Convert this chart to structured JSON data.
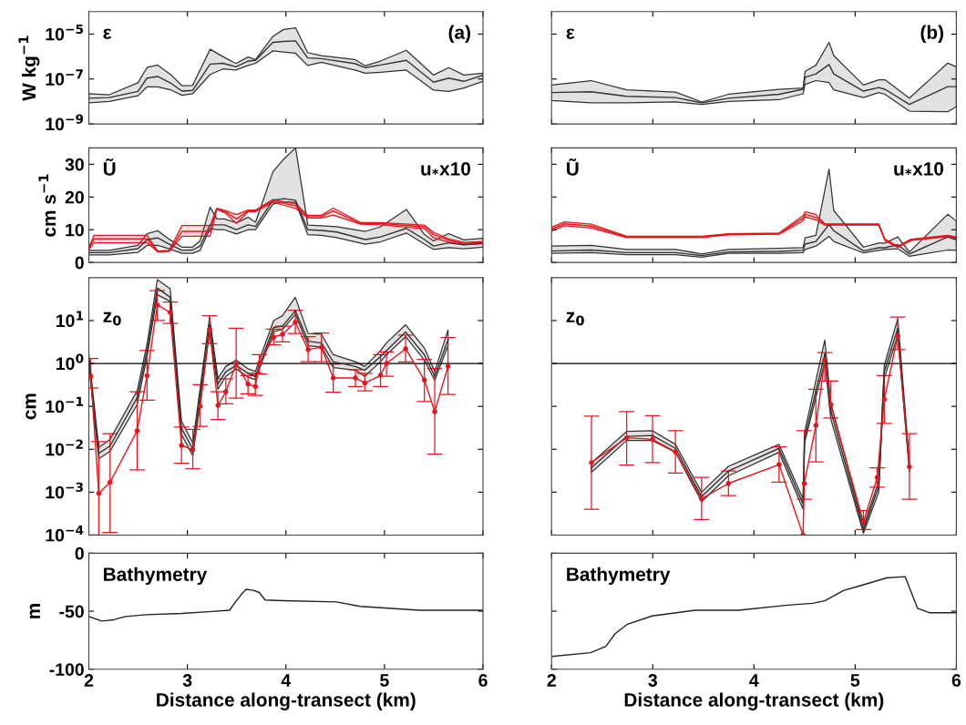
{
  "chart_data": [
    {
      "type": "line",
      "ylabel": "W kg$^{−1}$",
      "annotations": [
        "ε",
        "(a)"
      ],
      "log": true,
      "xlim": [
        2,
        6
      ],
      "xticks": [
        2,
        3,
        4,
        5,
        6
      ],
      "ylim": [
        1e-09,
        0.0001
      ],
      "yticks": [
        {
          "value": 1e-09,
          "label": "10$^{−9}$"
        },
        {
          "value": 1e-07,
          "label": "10$^{−7}$"
        },
        {
          "value": 1e-05,
          "label": "10$^{−5}$"
        }
      ],
      "tick_labels": "y",
      "marker": "none",
      "series": [
        {
          "color": "#333333",
          "x": [
            2,
            2.206,
            2.498,
            2.591,
            2.698,
            2.837,
            2.945,
            3.052,
            3.231,
            3.36,
            3.492,
            3.615,
            3.692,
            3.868,
            3.975,
            4.098,
            4.22,
            4.36,
            4.698,
            4.806,
            4.96,
            5.222,
            5.498,
            5.652,
            5.806,
            6.0
          ],
          "values": [
            1.4e-08,
            1.5e-08,
            2.8e-08,
            1.1e-07,
            1.3e-07,
            6.3e-08,
            2.9e-08,
            3.1e-08,
            4.6e-07,
            5e-07,
            3.5e-07,
            6.3e-07,
            6.8e-07,
            4.3e-06,
            4.7e-06,
            5e-06,
            8.7e-07,
            8.1e-07,
            4.9e-07,
            3.2e-07,
            4.2e-07,
            6.8e-07,
            7.2e-08,
            1.1e-07,
            7.9e-08,
            1.5e-07
          ],
          "lower": [
            8.7e-09,
            1e-08,
            1.8e-08,
            4.5e-08,
            4.5e-08,
            3.2e-08,
            1.9e-08,
            2.2e-08,
            1.6e-07,
            2.8e-07,
            2.5e-07,
            4e-07,
            5e-07,
            1.8e-06,
            1.6e-06,
            1.4e-06,
            4e-07,
            5.6e-07,
            2.5e-07,
            1.8e-07,
            2e-07,
            2.5e-07,
            3.2e-08,
            2.8e-08,
            4e-08,
            7.9e-08
          ],
          "upper": [
            2.2e-08,
            2e-08,
            6.8e-08,
            3.3e-07,
            4.2e-07,
            1.5e-07,
            5e-08,
            5.2e-08,
            2.1e-06,
            1e-06,
            4.9e-07,
            9.5e-07,
            7.4e-07,
            7.9e-06,
            1.6e-05,
            1.9e-05,
            1.5e-06,
            1.1e-06,
            7.4e-07,
            3.9e-07,
            6.3e-07,
            1.9e-06,
            1.5e-07,
            3.2e-07,
            1.5e-07,
            1.8e-07
          ]
        }
      ]
    },
    {
      "type": "line",
      "annotations": [
        "ε",
        "(b)"
      ],
      "log": true,
      "xlim": [
        2,
        6
      ],
      "xticks": [
        2,
        3,
        4,
        5,
        6
      ],
      "ylim": [
        1e-09,
        0.0001
      ],
      "yticks": [
        {
          "value": 1e-09,
          "label": null
        },
        {
          "value": 1e-07,
          "label": null
        },
        {
          "value": 1e-05,
          "label": null
        }
      ],
      "tick_labels": false,
      "marker": "none",
      "series": [
        {
          "color": "#333333",
          "x": [
            2,
            2.391,
            2.742,
            3.224,
            3.485,
            3.748,
            4.248,
            4.485,
            4.506,
            4.612,
            4.742,
            4.788,
            5.082,
            5.233,
            5.294,
            5.536,
            5.915,
            6.0
          ],
          "values": [
            2.5e-08,
            2.7e-08,
            1.7e-08,
            1.5e-08,
            8.7e-09,
            1.4e-08,
            2.1e-08,
            3.5e-08,
            1.2e-07,
            1.7e-07,
            4.4e-07,
            1.7e-07,
            2.9e-08,
            4.2e-08,
            3.5e-08,
            7.4e-09,
            4.6e-08,
            4.6e-08
          ],
          "lower": [
            1.1e-08,
            8.7e-09,
            8.7e-09,
            9.5e-09,
            7.4e-09,
            1e-08,
            1.2e-08,
            2.2e-08,
            5.8e-08,
            8.5e-08,
            6.9e-08,
            3.3e-08,
            1.5e-08,
            2.5e-08,
            2.1e-08,
            3.7e-09,
            3.5e-09,
            6e-09
          ],
          "upper": [
            5.4e-08,
            8.5e-08,
            3.3e-08,
            2.6e-08,
            9.5e-09,
            2.1e-08,
            3.5e-08,
            4e-08,
            2.2e-07,
            4.1e-07,
            4.3e-06,
            1.1e-06,
            5.4e-08,
            9.3e-08,
            9.3e-08,
            1.4e-08,
            5.1e-07,
            3.5e-07
          ]
        }
      ]
    },
    {
      "type": "line",
      "ylabel": "cm s$^{−1}$",
      "annotations": [
        "Ũ",
        "u$_{*}$x10"
      ],
      "xlim": [
        2,
        6
      ],
      "xticks": [
        2,
        3,
        4,
        5,
        6
      ],
      "ylim": [
        0,
        35
      ],
      "yticks": [
        0,
        10,
        20,
        30
      ],
      "tick_labels": "y",
      "marker": "none",
      "series": [
        {
          "color": "#333333",
          "x": [
            2.0,
            2.206,
            2.498,
            2.591,
            2.698,
            2.815,
            2.945,
            3.052,
            3.129,
            3.231,
            3.298,
            3.375,
            3.498,
            3.615,
            3.692,
            3.868,
            3.975,
            4.098,
            4.222,
            4.36,
            4.514,
            4.806,
            4.96,
            5.222,
            5.406,
            5.498,
            5.652,
            5.806,
            6.0
          ],
          "values": [
            3.0,
            3.0,
            4.2,
            7.0,
            7.5,
            5.6,
            3.7,
            3.8,
            5.0,
            11.5,
            11.5,
            11.5,
            10.0,
            11.5,
            11.0,
            19.0,
            19.5,
            19.0,
            10.0,
            9.8,
            9.3,
            7.0,
            7.8,
            10.4,
            7.0,
            5.0,
            6.0,
            5.4,
            5.8
          ],
          "lower": [
            2.3,
            2.3,
            3.1,
            5.2,
            5.2,
            4.2,
            2.8,
            2.8,
            3.7,
            10.4,
            10.0,
            10.0,
            8.7,
            10.0,
            10.0,
            17.8,
            18.5,
            18.4,
            8.5,
            8.3,
            7.6,
            5.6,
            6.3,
            9.0,
            5.6,
            4.0,
            4.5,
            4.2,
            4.7
          ],
          "upper": [
            3.7,
            3.7,
            5.2,
            8.8,
            9.7,
            7.1,
            4.7,
            4.7,
            6.6,
            16.9,
            13.3,
            13.3,
            12.1,
            13.8,
            12.3,
            27.7,
            31.5,
            35,
            11.4,
            11.2,
            10.9,
            9.5,
            10.9,
            16.2,
            8.5,
            6.6,
            8.8,
            6.9,
            7.4
          ]
        },
        {
          "color": "#e8141c",
          "x": [
            2.0,
            2.052,
            2.591,
            2.698,
            2.815,
            2.945,
            3.231,
            3.298,
            3.39,
            3.498,
            3.615,
            3.692,
            3.868,
            3.975,
            4.098,
            4.222,
            4.36,
            4.48,
            4.757,
            4.96,
            5.406,
            5.498,
            5.652,
            5.806,
            6.0
          ],
          "values": [
            4.2,
            7.2,
            7.2,
            3.3,
            3.5,
            9.5,
            9.5,
            16.4,
            15.4,
            13.3,
            15.7,
            15.7,
            18.8,
            18.1,
            17.3,
            14.0,
            14.0,
            15.7,
            11.9,
            11.9,
            10.9,
            8.5,
            6.8,
            5.8,
            6.1
          ],
          "lower": [
            4.0,
            6.0,
            6.0,
            3.2,
            3.4,
            8.0,
            8.0,
            16.2,
            15.0,
            11.9,
            15.5,
            15.5,
            18.4,
            17.5,
            16.5,
            13.6,
            13.6,
            14.5,
            11.7,
            11.5,
            10.3,
            7.5,
            6.2,
            5.5,
            5.8
          ],
          "upper": [
            4.5,
            8.3,
            8.3,
            3.5,
            3.7,
            11.3,
            11.3,
            16.6,
            15.8,
            14.6,
            16.0,
            16.0,
            19.2,
            18.6,
            17.9,
            14.4,
            14.4,
            16.6,
            12.2,
            12.2,
            11.4,
            9.2,
            7.2,
            6.1,
            6.4
          ]
        }
      ]
    },
    {
      "type": "line",
      "annotations": [
        "Ũ",
        "u$_{*}$x10"
      ],
      "xlim": [
        2,
        6
      ],
      "xticks": [
        2,
        3,
        4,
        5,
        6
      ],
      "ylim": [
        0,
        35
      ],
      "yticks": [
        {
          "value": 0,
          "label": null
        },
        {
          "value": 10,
          "label": null
        },
        {
          "value": 20,
          "label": null
        },
        {
          "value": 30,
          "label": null
        }
      ],
      "tick_labels": false,
      "marker": "none",
      "series": [
        {
          "color": "#333333",
          "x": [
            2,
            2.391,
            2.742,
            3.224,
            3.485,
            3.748,
            4.248,
            4.485,
            4.506,
            4.612,
            4.742,
            4.788,
            5.082,
            5.233,
            5.294,
            5.421,
            5.536,
            5.915,
            6.0
          ],
          "values": [
            3.5,
            3.8,
            3.0,
            3.0,
            2.1,
            3.2,
            3.4,
            3.7,
            5.6,
            6.4,
            11.6,
            9.7,
            3.5,
            4.5,
            4.5,
            5.4,
            2.6,
            7.8,
            6.9
          ],
          "lower": [
            2.8,
            3.0,
            2.4,
            2.4,
            1.6,
            2.8,
            2.8,
            3.0,
            4.0,
            5.0,
            8.0,
            6.4,
            2.9,
            3.7,
            4.0,
            4.2,
            1.9,
            3.8,
            3.7
          ],
          "upper": [
            5.0,
            5.2,
            4.0,
            4.0,
            2.6,
            4.0,
            4.3,
            4.5,
            7.5,
            8.3,
            28.5,
            15.9,
            4.7,
            5.9,
            5.9,
            7.8,
            3.2,
            14.7,
            12.6
          ]
        },
        {
          "color": "#e8141c",
          "x": [
            2,
            2.127,
            2.391,
            2.742,
            3.485,
            3.748,
            4.248,
            4.485,
            4.506,
            4.612,
            4.7,
            5.233,
            5.294,
            5.421,
            5.552,
            5.915,
            6.0
          ],
          "values": [
            10.2,
            11.8,
            11.1,
            7.8,
            7.8,
            8.6,
            8.8,
            13.5,
            14.7,
            13.8,
            11.6,
            11.6,
            6.9,
            4.8,
            6.9,
            8.1,
            7.6
          ],
          "lower": [
            9.6,
            11.2,
            10.5,
            7.6,
            7.6,
            8.4,
            8.6,
            12.7,
            13.9,
            13.0,
            11.4,
            11.4,
            6.7,
            4.6,
            6.7,
            7.9,
            7.4
          ],
          "upper": [
            10.8,
            12.4,
            11.7,
            8.0,
            8.0,
            8.8,
            9.0,
            14.3,
            15.5,
            14.6,
            11.8,
            11.8,
            7.1,
            5.0,
            7.1,
            8.3,
            7.8
          ]
        }
      ]
    },
    {
      "type": "line",
      "ylabel": "cm",
      "annotations": [
        "z$_{0}$"
      ],
      "log": true,
      "xlim": [
        2,
        6
      ],
      "xticks": [
        2,
        3,
        4,
        5,
        6
      ],
      "ylim": [
        0.0001,
        100
      ],
      "yticks": [
        {
          "value": 0.0001,
          "label": "10$^{−4}$"
        },
        {
          "value": 0.001,
          "label": "10$^{−3}$"
        },
        {
          "value": 0.01,
          "label": "10$^{−2}$"
        },
        {
          "value": 0.1,
          "label": "10$^{−1}$"
        },
        {
          "value": 1,
          "label": "10$^{0}$"
        },
        {
          "value": 10,
          "label": "10$^{1}$"
        }
      ],
      "tick_labels": "y",
      "ref_lines": [
        {
          "axis": "y",
          "value": 1,
          "color": "#000000"
        }
      ],
      "series": [
        {
          "color": "#333333",
          "marker": "none",
          "x": [
            2.0,
            2.1,
            2.215,
            2.49,
            2.59,
            2.695,
            2.825,
            2.94,
            3.055,
            3.225,
            3.31,
            3.39,
            3.495,
            3.615,
            3.69,
            3.73,
            3.875,
            3.965,
            4.095,
            4.225,
            4.36,
            4.48,
            4.705,
            4.8,
            4.96,
            5.02,
            5.215,
            5.405,
            5.51,
            5.645
          ],
          "values": [
            1.2,
            0.008,
            0.012,
            0.16,
            1.9,
            57,
            35,
            0.031,
            0.01,
            8,
            0.33,
            0.64,
            0.9,
            0.59,
            0.5,
            0.9,
            6.9,
            7.4,
            17,
            3.3,
            3.0,
            1.1,
            0.85,
            0.7,
            1.45,
            2.0,
            5.4,
            1.6,
            0.5,
            3.6
          ],
          "lower": [
            0.9,
            0.006,
            0.009,
            0.11,
            1.4,
            40,
            28,
            0.022,
            0.007,
            5.5,
            0.25,
            0.5,
            0.75,
            0.48,
            0.42,
            0.75,
            5.5,
            6.2,
            14,
            2.6,
            2.4,
            0.8,
            0.7,
            0.5,
            1.1,
            1.6,
            4.2,
            1.2,
            0.4,
            2.6
          ],
          "upper": [
            1.6,
            0.011,
            0.017,
            0.23,
            2.8,
            90,
            55,
            0.045,
            0.014,
            12,
            0.45,
            0.85,
            1.2,
            0.75,
            0.65,
            1.2,
            10,
            13,
            35,
            5.0,
            4.8,
            1.6,
            1.1,
            0.85,
            2.0,
            3.0,
            8.0,
            2.3,
            0.65,
            6.0
          ]
        },
        {
          "color": "#e8141c",
          "marker": "circle",
          "x": [
            2.02,
            2.1,
            2.215,
            2.49,
            2.59,
            2.695,
            2.825,
            2.94,
            3.055,
            3.13,
            3.225,
            3.31,
            3.39,
            3.495,
            3.615,
            3.69,
            3.73,
            3.875,
            3.965,
            4.095,
            4.225,
            4.36,
            4.48,
            4.705,
            4.8,
            4.96,
            5.02,
            5.215,
            5.405,
            5.51,
            5.645
          ],
          "values": [
            0.5,
            0.00093,
            0.0017,
            0.027,
            0.52,
            23,
            15.5,
            0.0123,
            0.0097,
            0.1,
            6.3,
            0.105,
            0.22,
            0.97,
            0.33,
            0.29,
            1.0,
            4.1,
            4.8,
            9.2,
            2.1,
            2.4,
            0.46,
            0.46,
            0.35,
            0.53,
            1.0,
            2.2,
            0.41,
            0.075,
            0.86
          ],
          "errors": [
            [
              0.27,
              1.3
            ],
            [
              0.0001,
              0.015
            ],
            [
              0.000115,
              0.023
            ],
            [
              0.0033,
              0.22
            ],
            [
              0.14,
              2.0
            ],
            [
              10,
              50
            ],
            [
              8.6,
              27
            ],
            [
              0.0047,
              0.033
            ],
            [
              0.0035,
              0.029
            ],
            [
              0.034,
              0.32
            ],
            [
              2.9,
              13
            ],
            [
              0.049,
              0.22
            ],
            [
              0.114,
              0.44
            ],
            [
              0.155,
              6.6
            ],
            [
              0.195,
              0.52
            ],
            [
              0.18,
              0.59
            ],
            [
              0.57,
              1.6
            ],
            [
              2.7,
              6.3
            ],
            [
              3.2,
              7.4
            ],
            [
              5.0,
              17.4
            ],
            [
              1.1,
              4.2
            ],
            [
              1.1,
              5.1
            ],
            [
              0.215,
              0.97
            ],
            [
              0.29,
              0.72
            ],
            [
              0.23,
              0.59
            ],
            [
              0.29,
              1.6
            ],
            [
              0.5,
              1.86
            ],
            [
              1.08,
              4.6
            ],
            [
              0.13,
              1.24
            ],
            [
              0.0077,
              0.76
            ],
            [
              0.19,
              4.0
            ]
          ]
        }
      ]
    },
    {
      "type": "line",
      "annotations": [
        "z$_{0}$"
      ],
      "log": true,
      "xlim": [
        2,
        6
      ],
      "xticks": [
        2,
        3,
        4,
        5,
        6
      ],
      "ylim": [
        0.0001,
        100
      ],
      "yticks": [
        {
          "value": 0.0001,
          "label": null
        },
        {
          "value": 0.001,
          "label": null
        },
        {
          "value": 0.01,
          "label": null
        },
        {
          "value": 0.1,
          "label": null
        },
        {
          "value": 1,
          "label": null
        },
        {
          "value": 10,
          "label": null
        }
      ],
      "tick_labels": false,
      "ref_lines": [
        {
          "axis": "y",
          "value": 1,
          "color": "#000000"
        }
      ],
      "series": [
        {
          "color": "#333333",
          "marker": "none",
          "x": [
            2.394,
            2.742,
            2.997,
            3.224,
            3.482,
            3.748,
            4.248,
            4.485,
            4.5,
            4.7,
            4.76,
            5.082,
            5.233,
            5.288,
            5.421,
            5.536
          ],
          "values": [
            0.0037,
            0.02,
            0.021,
            0.0105,
            0.00079,
            0.0031,
            0.0105,
            0.00053,
            0.018,
            1.67,
            0.078,
            0.00013,
            0.0014,
            0.64,
            6.6,
            0.0039
          ],
          "lower": [
            0.0029,
            0.016,
            0.016,
            0.0085,
            0.0006,
            0.0024,
            0.0085,
            0.0004,
            0.014,
            1.1,
            0.05,
            0.00011,
            0.001,
            0.45,
            4.5,
            0.003
          ],
          "upper": [
            0.0048,
            0.026,
            0.027,
            0.013,
            0.001,
            0.004,
            0.013,
            0.0007,
            0.025,
            3.5,
            0.12,
            0.00016,
            0.0018,
            0.9,
            11,
            0.005
          ]
        },
        {
          "color": "#e8141c",
          "marker": "circle",
          "x": [
            2.394,
            2.742,
            2.997,
            3.224,
            3.482,
            3.748,
            4.248,
            4.485,
            4.497,
            4.612,
            4.7,
            4.76,
            5.082,
            5.218,
            5.288,
            5.421,
            5.536
          ],
          "values": [
            0.0049,
            0.0185,
            0.017,
            0.0087,
            0.0007,
            0.0016,
            0.0044,
            0.0001,
            0.0016,
            0.036,
            1.2,
            0.11,
            0.0002,
            0.0022,
            0.145,
            4.4,
            0.0039
          ],
          "errors": [
            [
              0.0004,
              0.059
            ],
            [
              0.0043,
              0.076
            ],
            [
              0.0049,
              0.061
            ],
            [
              0.0028,
              0.027
            ],
            [
              0.00023,
              0.0022
            ],
            [
              0.00083,
              0.0031
            ],
            [
              0.0017,
              0.0114
            ],
            null,
            [
              0.00068,
              0.027
            ],
            [
              0.0051,
              0.25
            ],
            [
              0.39,
              1.8
            ],
            [
              0.054,
              0.39
            ],
            [
              0.000135,
              0.00037
            ],
            [
              0.0013,
              0.0037
            ],
            [
              0.04,
              0.52
            ],
            [
              2.1,
              12
            ],
            [
              0.00068,
              0.023
            ]
          ]
        }
      ]
    },
    {
      "type": "line",
      "ylabel": "m",
      "xlabel": "Distance along-transect (km)",
      "annotations": [
        "Bathymetry"
      ],
      "xlim": [
        2,
        6
      ],
      "xticks": [
        2,
        3,
        4,
        5,
        6
      ],
      "ylim": [
        -100,
        0
      ],
      "yticks": [
        -100,
        -50,
        0
      ],
      "marker": "none",
      "series": [
        {
          "color": "#222222",
          "x": [
            2,
            2.133,
            2.253,
            2.373,
            2.584,
            2.946,
            3.247,
            3.428,
            3.488,
            3.548,
            3.596,
            3.669,
            3.729,
            3.789,
            3.97,
            4.512,
            4.753,
            5.355,
            6.0
          ],
          "values": [
            -54.6,
            -58.5,
            -57.4,
            -54.6,
            -53,
            -51.9,
            -50.3,
            -49.2,
            -42,
            -35.5,
            -31.1,
            -32,
            -33.9,
            -40.4,
            -41,
            -42,
            -45.9,
            -49.2,
            -49.2
          ]
        }
      ]
    },
    {
      "type": "line",
      "xlabel": "Distance along-transect (km)",
      "annotations": [
        "Bathymetry"
      ],
      "xlim": [
        2,
        6
      ],
      "xticks": [
        2,
        3,
        4,
        5,
        6
      ],
      "ylim": [
        -100,
        0
      ],
      "yticks": [
        {
          "value": -100,
          "label": null
        },
        {
          "value": -50,
          "label": null
        },
        {
          "value": 0,
          "label": null
        }
      ],
      "tick_labels": "x",
      "marker": "none",
      "series": [
        {
          "color": "#222222",
          "x": [
            2,
            2.384,
            2.537,
            2.628,
            2.75,
            2.994,
            3.421,
            3.848,
            4.335,
            4.579,
            4.701,
            4.884,
            5.037,
            5.311,
            5.494,
            5.543,
            5.616,
            5.738,
            6.0
          ],
          "values": [
            -89,
            -85.8,
            -80.3,
            -69.4,
            -61.2,
            -54.1,
            -49.2,
            -49.2,
            -44.8,
            -43.2,
            -41,
            -32.2,
            -28.4,
            -21.3,
            -20.2,
            -31.1,
            -47.5,
            -51.4,
            -51.4
          ]
        }
      ]
    }
  ]
}
